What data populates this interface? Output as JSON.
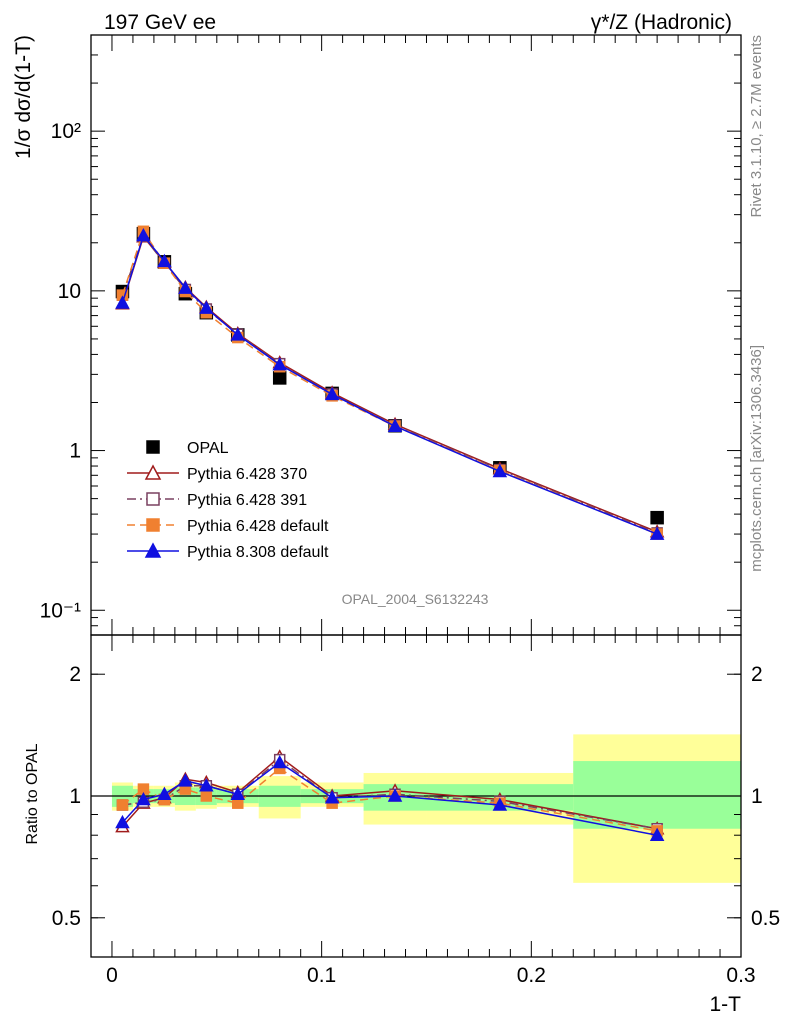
{
  "header": {
    "left_title": "197 GeV ee",
    "right_title": "γ*/Z (Hadronic)"
  },
  "side_labels": {
    "rivet": "Rivet 3.1.10, ≥ 2.7M events",
    "mcplots": "mcplots.cern.ch [arXiv:1306.3436]"
  },
  "watermark": "OPAL_2004_S6132243",
  "chart_data": [
    {
      "type": "scatter",
      "panel": "main",
      "ylabel": "1/σ dσ/d(1-T)",
      "yscale": "log",
      "xlim": [
        -0.01,
        0.3
      ],
      "ylim": [
        0.07,
        400
      ],
      "ytick_labels": [
        "10⁻¹",
        "1",
        "10",
        "10²"
      ],
      "ytick_values": [
        0.1,
        1,
        10,
        100
      ],
      "legend_position": "lower-left",
      "x": [
        0.005,
        0.015,
        0.025,
        0.035,
        0.045,
        0.06,
        0.08,
        0.105,
        0.135,
        0.185,
        0.26
      ],
      "series": [
        {
          "name": "OPAL",
          "color": "#000000",
          "marker": "filled-square",
          "line": "none",
          "values": [
            9.9,
            22.8,
            15.2,
            9.6,
            7.3,
            5.3,
            2.85,
            2.28,
            1.43,
            0.78,
            0.38
          ]
        },
        {
          "name": "Pythia 6.428 370",
          "color": "#a01c1c",
          "marker": "open-triangle",
          "line": "solid",
          "values": [
            8.3,
            21.8,
            15.1,
            10.5,
            7.9,
            5.4,
            3.55,
            2.3,
            1.46,
            0.77,
            0.31
          ]
        },
        {
          "name": "Pythia 6.428 391",
          "color": "#7a4060",
          "marker": "open-square",
          "line": "dash-dot",
          "values": [
            9.4,
            22.0,
            14.9,
            10.2,
            7.7,
            5.35,
            3.5,
            2.26,
            1.44,
            0.76,
            0.305
          ]
        },
        {
          "name": "Pythia 6.428 default",
          "color": "#f08030",
          "marker": "filled-square",
          "line": "dashed",
          "values": [
            9.4,
            23.6,
            14.9,
            9.9,
            7.3,
            5.1,
            3.35,
            2.2,
            1.42,
            0.75,
            0.3
          ]
        },
        {
          "name": "Pythia 8.308 default",
          "color": "#1010e0",
          "marker": "filled-triangle",
          "line": "solid",
          "values": [
            8.4,
            22.2,
            15.3,
            10.4,
            7.8,
            5.3,
            3.45,
            2.25,
            1.42,
            0.74,
            0.3
          ]
        }
      ]
    },
    {
      "type": "scatter",
      "panel": "ratio",
      "ylabel": "Ratio to OPAL",
      "xlabel": "1-T",
      "yscale": "log",
      "xlim": [
        -0.01,
        0.3
      ],
      "ylim": [
        0.4,
        2.5
      ],
      "ytick_labels": [
        "0.5",
        "1",
        "2"
      ],
      "ytick_values": [
        0.5,
        1,
        2
      ],
      "xtick_labels": [
        "0",
        "0.1",
        "0.2",
        "0.3"
      ],
      "xtick_values": [
        0,
        0.1,
        0.2,
        0.3
      ],
      "bands": [
        {
          "x0": 0.0,
          "x1": 0.01,
          "stat_lo": 0.94,
          "stat_hi": 1.06,
          "tot_lo": 0.92,
          "tot_hi": 1.08
        },
        {
          "x0": 0.01,
          "x1": 0.02,
          "stat_lo": 0.96,
          "stat_hi": 1.04,
          "tot_lo": 0.94,
          "tot_hi": 1.06
        },
        {
          "x0": 0.02,
          "x1": 0.03,
          "stat_lo": 0.96,
          "stat_hi": 1.04,
          "tot_lo": 0.94,
          "tot_hi": 1.06
        },
        {
          "x0": 0.03,
          "x1": 0.04,
          "stat_lo": 0.95,
          "stat_hi": 1.05,
          "tot_lo": 0.92,
          "tot_hi": 1.08
        },
        {
          "x0": 0.04,
          "x1": 0.05,
          "stat_lo": 0.95,
          "stat_hi": 1.05,
          "tot_lo": 0.93,
          "tot_hi": 1.07
        },
        {
          "x0": 0.05,
          "x1": 0.07,
          "stat_lo": 0.96,
          "stat_hi": 1.04,
          "tot_lo": 0.94,
          "tot_hi": 1.06
        },
        {
          "x0": 0.07,
          "x1": 0.09,
          "stat_lo": 0.94,
          "stat_hi": 1.06,
          "tot_lo": 0.88,
          "tot_hi": 1.12
        },
        {
          "x0": 0.09,
          "x1": 0.12,
          "stat_lo": 0.96,
          "stat_hi": 1.04,
          "tot_lo": 0.94,
          "tot_hi": 1.08
        },
        {
          "x0": 0.12,
          "x1": 0.15,
          "stat_lo": 0.92,
          "stat_hi": 1.07,
          "tot_lo": 0.85,
          "tot_hi": 1.14
        },
        {
          "x0": 0.15,
          "x1": 0.22,
          "stat_lo": 0.92,
          "stat_hi": 1.07,
          "tot_lo": 0.85,
          "tot_hi": 1.14
        },
        {
          "x0": 0.22,
          "x1": 0.3,
          "stat_lo": 0.83,
          "stat_hi": 1.22,
          "tot_lo": 0.61,
          "tot_hi": 1.42
        }
      ],
      "x": [
        0.005,
        0.015,
        0.025,
        0.035,
        0.045,
        0.06,
        0.08,
        0.105,
        0.135,
        0.185,
        0.26
      ],
      "series": [
        {
          "name": "Pythia 6.428 370",
          "color": "#a01c1c",
          "marker": "open-triangle",
          "line": "solid",
          "values": [
            0.84,
            0.96,
            0.99,
            1.1,
            1.08,
            1.02,
            1.25,
            1.0,
            1.03,
            0.98,
            0.83
          ]
        },
        {
          "name": "Pythia 6.428 391",
          "color": "#7a4060",
          "marker": "open-square",
          "line": "dash-dot",
          "values": [
            0.95,
            0.965,
            0.98,
            1.06,
            1.06,
            1.01,
            1.23,
            0.99,
            1.01,
            0.97,
            0.83
          ]
        },
        {
          "name": "Pythia 6.428 default",
          "color": "#f08030",
          "marker": "filled-square",
          "line": "dashed",
          "values": [
            0.95,
            1.04,
            0.98,
            1.04,
            1.0,
            0.96,
            1.17,
            0.96,
            1.0,
            0.96,
            0.82
          ]
        },
        {
          "name": "Pythia 8.308 default",
          "color": "#1010e0",
          "marker": "filled-triangle",
          "line": "solid",
          "values": [
            0.86,
            0.98,
            1.01,
            1.09,
            1.06,
            1.01,
            1.21,
            0.99,
            1.0,
            0.95,
            0.8
          ]
        }
      ]
    }
  ]
}
